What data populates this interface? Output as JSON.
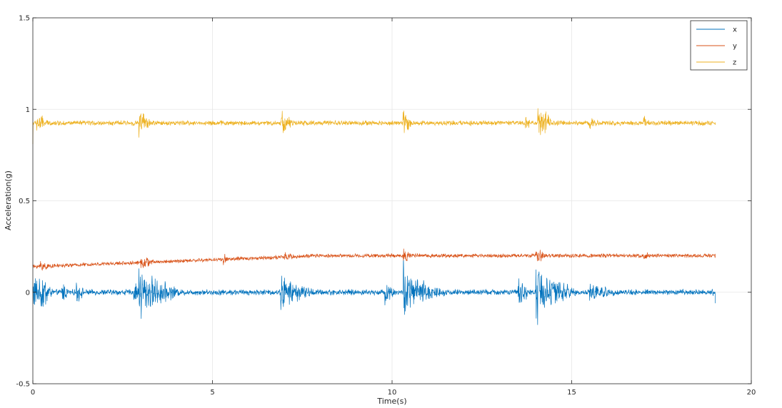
{
  "chart_data": {
    "type": "line",
    "title": "",
    "xlabel": "Time(s)",
    "ylabel": "Acceleration(g)",
    "xlim": [
      0,
      20
    ],
    "ylim": [
      -0.5,
      1.5
    ],
    "xticks": [
      0,
      5,
      10,
      15,
      20
    ],
    "yticks": [
      -0.5,
      0,
      0.5,
      1,
      1.5
    ],
    "xtick_labels": [
      "0",
      "5",
      "10",
      "15",
      "20"
    ],
    "ytick_labels": [
      "-0.5",
      "0",
      "0.5",
      "1",
      "1.5"
    ],
    "grid": true,
    "legend_position": "top-right",
    "x_range": [
      0,
      19
    ],
    "series": [
      {
        "name": "x",
        "color": "#0072BD",
        "baseline": 0.0,
        "noise": 0.012,
        "start_value": 0.0,
        "end_value": -0.06,
        "bursts": [
          {
            "t": 0.0,
            "amp": 0.08,
            "dur": 0.5
          },
          {
            "t": 0.2,
            "amp": 0.1,
            "dur": 0.4
          },
          {
            "t": 0.8,
            "amp": 0.05,
            "dur": 0.3
          },
          {
            "t": 1.2,
            "amp": 0.05,
            "dur": 0.3
          },
          {
            "t": 2.8,
            "amp": 0.06,
            "dur": 0.2
          },
          {
            "t": 2.95,
            "amp": 0.14,
            "dur": 0.4
          },
          {
            "t": 3.1,
            "amp": 0.08,
            "dur": 1.2
          },
          {
            "t": 6.9,
            "amp": 0.09,
            "dur": 0.4
          },
          {
            "t": 7.1,
            "amp": 0.05,
            "dur": 1.0
          },
          {
            "t": 9.8,
            "amp": 0.05,
            "dur": 0.4
          },
          {
            "t": 10.3,
            "amp": 0.16,
            "dur": 0.3
          },
          {
            "t": 10.5,
            "amp": 0.07,
            "dur": 1.2
          },
          {
            "t": 13.5,
            "amp": 0.07,
            "dur": 0.4
          },
          {
            "t": 14.0,
            "amp": 0.14,
            "dur": 0.5
          },
          {
            "t": 14.3,
            "amp": 0.08,
            "dur": 1.0
          },
          {
            "t": 15.5,
            "amp": 0.04,
            "dur": 1.0
          },
          {
            "t": 18.9,
            "amp": 0.03,
            "dur": 0.1
          }
        ]
      },
      {
        "name": "y",
        "color": "#D95319",
        "baseline": 0.14,
        "baseline_end": 0.2,
        "noise": 0.008,
        "start_value": 0.15,
        "end_value": 0.21,
        "bursts": [
          {
            "t": 0.2,
            "amp": 0.04,
            "dur": 0.3
          },
          {
            "t": 3.0,
            "amp": 0.03,
            "dur": 0.5
          },
          {
            "t": 5.3,
            "amp": 0.03,
            "dur": 0.2
          },
          {
            "t": 7.0,
            "amp": 0.02,
            "dur": 0.5
          },
          {
            "t": 10.3,
            "amp": 0.04,
            "dur": 0.3
          },
          {
            "t": 14.0,
            "amp": 0.04,
            "dur": 0.4
          },
          {
            "t": 17.0,
            "amp": 0.03,
            "dur": 0.2
          }
        ]
      },
      {
        "name": "z",
        "color": "#EDB120",
        "baseline": 0.925,
        "noise": 0.01,
        "start_value": 0.81,
        "end_value": 0.915,
        "bursts": [
          {
            "t": 0.1,
            "amp": 0.05,
            "dur": 0.4
          },
          {
            "t": 2.95,
            "amp": 0.06,
            "dur": 0.4
          },
          {
            "t": 6.9,
            "amp": 0.06,
            "dur": 0.4
          },
          {
            "t": 10.3,
            "amp": 0.06,
            "dur": 0.3
          },
          {
            "t": 13.7,
            "amp": 0.04,
            "dur": 0.2
          },
          {
            "t": 14.05,
            "amp": 0.08,
            "dur": 0.5
          },
          {
            "t": 15.5,
            "amp": 0.03,
            "dur": 0.3
          },
          {
            "t": 17.0,
            "amp": 0.04,
            "dur": 0.2
          }
        ]
      }
    ]
  }
}
